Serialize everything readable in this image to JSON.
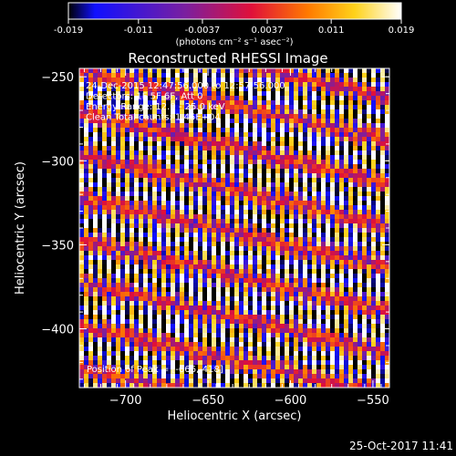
{
  "colorbar": {
    "ticks": [
      "-0.019",
      "-0.011",
      "-0.0037",
      "0.0037",
      "0.011",
      "0.019"
    ],
    "tick_values": [
      -0.019,
      -0.011,
      -0.0037,
      0.0037,
      0.011,
      0.019
    ],
    "range": [
      -0.019,
      0.019
    ],
    "units": "(photons cm⁻² s⁻¹ asec⁻²)"
  },
  "chart_data": {
    "type": "heatmap",
    "title": "Reconstructed RHESSI Image",
    "xlabel": "Heliocentric X (arcsec)",
    "ylabel": "Heliocentric Y (arcsec)",
    "xlim": [
      -728,
      -540
    ],
    "ylim": [
      -435,
      -245
    ],
    "xticks": [
      -700,
      -650,
      -600,
      -550
    ],
    "yticks": [
      -250,
      -300,
      -350,
      -400
    ],
    "colormap": [
      "#000000",
      "#1010ff",
      "#7a1fa0",
      "#e0103a",
      "#ff7a00",
      "#ffd21a",
      "#ffffff"
    ],
    "pattern": "vertical fringe stripes, period ~10 arcsec, full-scale alternating values",
    "annotations": [
      "24-Dec-2015 12:47:56.000 to 12:57:56.000",
      "Detectors: 1F 5F 6F, Att 0",
      "Energy Range: 12.0 - 25.0 keV",
      "Clean    Total counts: 1.45E+04"
    ],
    "peak_label": "Position of Peak = [-666,-418]"
  },
  "timestamp": "25-Oct-2017 11:41"
}
